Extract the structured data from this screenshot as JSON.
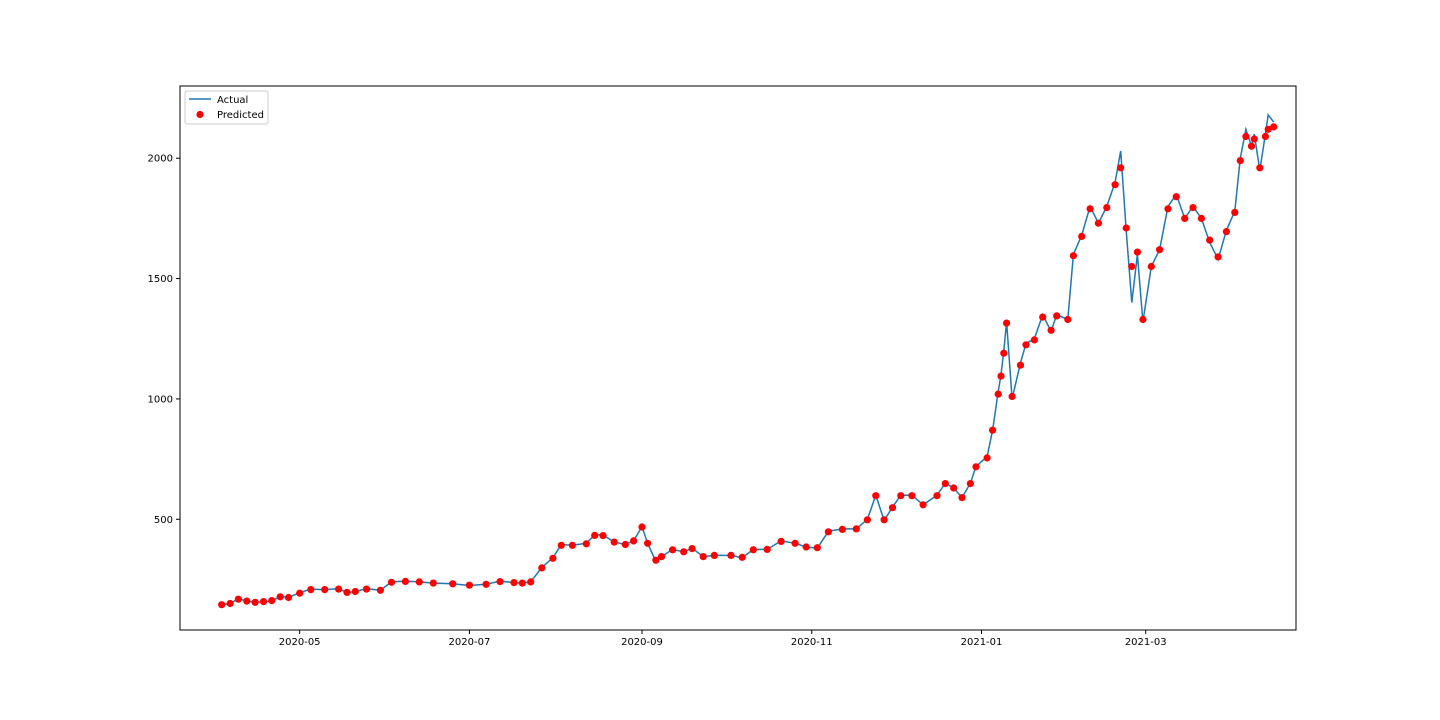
{
  "chart_data": {
    "type": "line",
    "title": "",
    "xlabel": "",
    "ylabel": "",
    "x_range": [
      "2020-03-19",
      "2021-04-24"
    ],
    "ylim": [
      40,
      2300
    ],
    "x_ticks": [
      {
        "date": "2020-05-01",
        "label": "2020-05"
      },
      {
        "date": "2020-07-01",
        "label": "2020-07"
      },
      {
        "date": "2020-09-01",
        "label": "2020-09"
      },
      {
        "date": "2020-11-01",
        "label": "2020-11"
      },
      {
        "date": "2021-01-01",
        "label": "2021-01"
      },
      {
        "date": "2021-03-01",
        "label": "2021-03"
      }
    ],
    "y_ticks": [
      500,
      1000,
      1500,
      2000
    ],
    "grid": false,
    "legend": {
      "position": "top-left",
      "entries": [
        {
          "label": "Actual",
          "marker": "line",
          "color": "#1f77b4"
        },
        {
          "label": "Predicted",
          "marker": "dot",
          "color": "#ff0000"
        }
      ]
    },
    "series": [
      {
        "name": "Actual",
        "style": "line",
        "color": "#1f77b4",
        "points": [
          [
            "2020-04-03",
            145
          ],
          [
            "2020-04-06",
            150
          ],
          [
            "2020-04-09",
            170
          ],
          [
            "2020-04-12",
            160
          ],
          [
            "2020-04-15",
            155
          ],
          [
            "2020-04-18",
            158
          ],
          [
            "2020-04-21",
            160
          ],
          [
            "2020-04-24",
            180
          ],
          [
            "2020-04-27",
            175
          ],
          [
            "2020-05-01",
            195
          ],
          [
            "2020-05-05",
            210
          ],
          [
            "2020-05-10",
            208
          ],
          [
            "2020-05-15",
            212
          ],
          [
            "2020-05-18",
            195
          ],
          [
            "2020-05-21",
            200
          ],
          [
            "2020-05-25",
            212
          ],
          [
            "2020-05-30",
            205
          ],
          [
            "2020-06-03",
            240
          ],
          [
            "2020-06-08",
            243
          ],
          [
            "2020-06-13",
            240
          ],
          [
            "2020-06-18",
            235
          ],
          [
            "2020-06-25",
            232
          ],
          [
            "2020-07-01",
            225
          ],
          [
            "2020-07-07",
            230
          ],
          [
            "2020-07-12",
            243
          ],
          [
            "2020-07-17",
            237
          ],
          [
            "2020-07-20",
            235
          ],
          [
            "2020-07-23",
            240
          ],
          [
            "2020-07-27",
            300
          ],
          [
            "2020-07-31",
            340
          ],
          [
            "2020-08-03",
            395
          ],
          [
            "2020-08-07",
            392
          ],
          [
            "2020-08-12",
            400
          ],
          [
            "2020-08-15",
            435
          ],
          [
            "2020-08-18",
            435
          ],
          [
            "2020-08-22",
            405
          ],
          [
            "2020-08-26",
            395
          ],
          [
            "2020-08-29",
            410
          ],
          [
            "2020-09-01",
            470
          ],
          [
            "2020-09-03",
            400
          ],
          [
            "2020-09-06",
            325
          ],
          [
            "2020-09-08",
            345
          ],
          [
            "2020-09-12",
            375
          ],
          [
            "2020-09-16",
            365
          ],
          [
            "2020-09-19",
            380
          ],
          [
            "2020-09-23",
            345
          ],
          [
            "2020-09-27",
            350
          ],
          [
            "2020-10-03",
            350
          ],
          [
            "2020-10-07",
            340
          ],
          [
            "2020-10-11",
            375
          ],
          [
            "2020-10-16",
            375
          ],
          [
            "2020-10-21",
            410
          ],
          [
            "2020-10-26",
            400
          ],
          [
            "2020-10-30",
            385
          ],
          [
            "2020-11-03",
            380
          ],
          [
            "2020-11-07",
            450
          ],
          [
            "2020-11-12",
            460
          ],
          [
            "2020-11-17",
            460
          ],
          [
            "2020-11-21",
            500
          ],
          [
            "2020-11-24",
            600
          ],
          [
            "2020-11-27",
            495
          ],
          [
            "2020-11-30",
            550
          ],
          [
            "2020-12-03",
            600
          ],
          [
            "2020-12-07",
            600
          ],
          [
            "2020-12-11",
            560
          ],
          [
            "2020-12-16",
            600
          ],
          [
            "2020-12-19",
            650
          ],
          [
            "2020-12-22",
            630
          ],
          [
            "2020-12-25",
            590
          ],
          [
            "2020-12-28",
            650
          ],
          [
            "2020-12-30",
            720
          ],
          [
            "2021-01-03",
            760
          ],
          [
            "2021-01-05",
            870
          ],
          [
            "2021-01-07",
            1030
          ],
          [
            "2021-01-08",
            1100
          ],
          [
            "2021-01-09",
            1200
          ],
          [
            "2021-01-10",
            1320
          ],
          [
            "2021-01-12",
            1000
          ],
          [
            "2021-01-15",
            1150
          ],
          [
            "2021-01-17",
            1230
          ],
          [
            "2021-01-20",
            1250
          ],
          [
            "2021-01-23",
            1350
          ],
          [
            "2021-01-26",
            1280
          ],
          [
            "2021-01-28",
            1350
          ],
          [
            "2021-02-01",
            1330
          ],
          [
            "2021-02-03",
            1600
          ],
          [
            "2021-02-06",
            1680
          ],
          [
            "2021-02-09",
            1800
          ],
          [
            "2021-02-12",
            1730
          ],
          [
            "2021-02-15",
            1800
          ],
          [
            "2021-02-18",
            1900
          ],
          [
            "2021-02-20",
            2030
          ],
          [
            "2021-02-22",
            1700
          ],
          [
            "2021-02-24",
            1400
          ],
          [
            "2021-02-26",
            1600
          ],
          [
            "2021-02-28",
            1320
          ],
          [
            "2021-03-03",
            1550
          ],
          [
            "2021-03-06",
            1620
          ],
          [
            "2021-03-09",
            1800
          ],
          [
            "2021-03-12",
            1850
          ],
          [
            "2021-03-15",
            1750
          ],
          [
            "2021-03-18",
            1800
          ],
          [
            "2021-03-21",
            1750
          ],
          [
            "2021-03-24",
            1650
          ],
          [
            "2021-03-27",
            1580
          ],
          [
            "2021-03-30",
            1700
          ],
          [
            "2021-04-02",
            1780
          ],
          [
            "2021-04-04",
            2000
          ],
          [
            "2021-04-06",
            2120
          ],
          [
            "2021-04-08",
            2050
          ],
          [
            "2021-04-09",
            2100
          ],
          [
            "2021-04-11",
            1950
          ],
          [
            "2021-04-13",
            2100
          ],
          [
            "2021-04-14",
            2180
          ],
          [
            "2021-04-16",
            2150
          ]
        ]
      },
      {
        "name": "Predicted",
        "style": "scatter",
        "color": "#ff0000",
        "points": [
          [
            "2020-04-03",
            145
          ],
          [
            "2020-04-06",
            150
          ],
          [
            "2020-04-09",
            168
          ],
          [
            "2020-04-12",
            160
          ],
          [
            "2020-04-15",
            155
          ],
          [
            "2020-04-18",
            158
          ],
          [
            "2020-04-21",
            162
          ],
          [
            "2020-04-24",
            178
          ],
          [
            "2020-04-27",
            175
          ],
          [
            "2020-05-01",
            193
          ],
          [
            "2020-05-05",
            208
          ],
          [
            "2020-05-10",
            208
          ],
          [
            "2020-05-15",
            210
          ],
          [
            "2020-05-18",
            196
          ],
          [
            "2020-05-21",
            200
          ],
          [
            "2020-05-25",
            210
          ],
          [
            "2020-05-30",
            205
          ],
          [
            "2020-06-03",
            238
          ],
          [
            "2020-06-08",
            242
          ],
          [
            "2020-06-13",
            240
          ],
          [
            "2020-06-18",
            235
          ],
          [
            "2020-06-25",
            232
          ],
          [
            "2020-07-01",
            226
          ],
          [
            "2020-07-07",
            230
          ],
          [
            "2020-07-12",
            241
          ],
          [
            "2020-07-17",
            237
          ],
          [
            "2020-07-20",
            235
          ],
          [
            "2020-07-23",
            240
          ],
          [
            "2020-07-27",
            298
          ],
          [
            "2020-07-31",
            338
          ],
          [
            "2020-08-03",
            392
          ],
          [
            "2020-08-07",
            392
          ],
          [
            "2020-08-12",
            398
          ],
          [
            "2020-08-15",
            433
          ],
          [
            "2020-08-18",
            432
          ],
          [
            "2020-08-22",
            405
          ],
          [
            "2020-08-26",
            395
          ],
          [
            "2020-08-29",
            410
          ],
          [
            "2020-09-01",
            468
          ],
          [
            "2020-09-03",
            400
          ],
          [
            "2020-09-06",
            330
          ],
          [
            "2020-09-08",
            345
          ],
          [
            "2020-09-12",
            373
          ],
          [
            "2020-09-16",
            365
          ],
          [
            "2020-09-19",
            378
          ],
          [
            "2020-09-23",
            345
          ],
          [
            "2020-09-27",
            350
          ],
          [
            "2020-10-03",
            350
          ],
          [
            "2020-10-07",
            342
          ],
          [
            "2020-10-11",
            373
          ],
          [
            "2020-10-16",
            375
          ],
          [
            "2020-10-21",
            408
          ],
          [
            "2020-10-26",
            400
          ],
          [
            "2020-10-30",
            385
          ],
          [
            "2020-11-03",
            382
          ],
          [
            "2020-11-07",
            448
          ],
          [
            "2020-11-12",
            458
          ],
          [
            "2020-11-17",
            460
          ],
          [
            "2020-11-21",
            498
          ],
          [
            "2020-11-24",
            598
          ],
          [
            "2020-11-27",
            498
          ],
          [
            "2020-11-30",
            548
          ],
          [
            "2020-12-03",
            598
          ],
          [
            "2020-12-07",
            598
          ],
          [
            "2020-12-11",
            560
          ],
          [
            "2020-12-16",
            598
          ],
          [
            "2020-12-19",
            648
          ],
          [
            "2020-12-22",
            630
          ],
          [
            "2020-12-25",
            590
          ],
          [
            "2020-12-28",
            648
          ],
          [
            "2020-12-30",
            718
          ],
          [
            "2021-01-03",
            755
          ],
          [
            "2021-01-05",
            870
          ],
          [
            "2021-01-07",
            1020
          ],
          [
            "2021-01-08",
            1095
          ],
          [
            "2021-01-09",
            1190
          ],
          [
            "2021-01-10",
            1315
          ],
          [
            "2021-01-12",
            1010
          ],
          [
            "2021-01-15",
            1140
          ],
          [
            "2021-01-17",
            1225
          ],
          [
            "2021-01-20",
            1245
          ],
          [
            "2021-01-23",
            1340
          ],
          [
            "2021-01-26",
            1285
          ],
          [
            "2021-01-28",
            1345
          ],
          [
            "2021-02-01",
            1330
          ],
          [
            "2021-02-03",
            1595
          ],
          [
            "2021-02-06",
            1675
          ],
          [
            "2021-02-09",
            1790
          ],
          [
            "2021-02-12",
            1730
          ],
          [
            "2021-02-15",
            1795
          ],
          [
            "2021-02-18",
            1890
          ],
          [
            "2021-02-20",
            1960
          ],
          [
            "2021-02-22",
            1710
          ],
          [
            "2021-02-24",
            1550
          ],
          [
            "2021-02-26",
            1610
          ],
          [
            "2021-02-28",
            1330
          ],
          [
            "2021-03-03",
            1550
          ],
          [
            "2021-03-06",
            1620
          ],
          [
            "2021-03-09",
            1790
          ],
          [
            "2021-03-12",
            1840
          ],
          [
            "2021-03-15",
            1750
          ],
          [
            "2021-03-18",
            1795
          ],
          [
            "2021-03-21",
            1750
          ],
          [
            "2021-03-24",
            1660
          ],
          [
            "2021-03-27",
            1590
          ],
          [
            "2021-03-30",
            1695
          ],
          [
            "2021-04-02",
            1775
          ],
          [
            "2021-04-04",
            1990
          ],
          [
            "2021-04-06",
            2090
          ],
          [
            "2021-04-08",
            2050
          ],
          [
            "2021-04-09",
            2080
          ],
          [
            "2021-04-11",
            1960
          ],
          [
            "2021-04-13",
            2090
          ],
          [
            "2021-04-14",
            2120
          ],
          [
            "2021-04-16",
            2130
          ]
        ]
      }
    ]
  }
}
